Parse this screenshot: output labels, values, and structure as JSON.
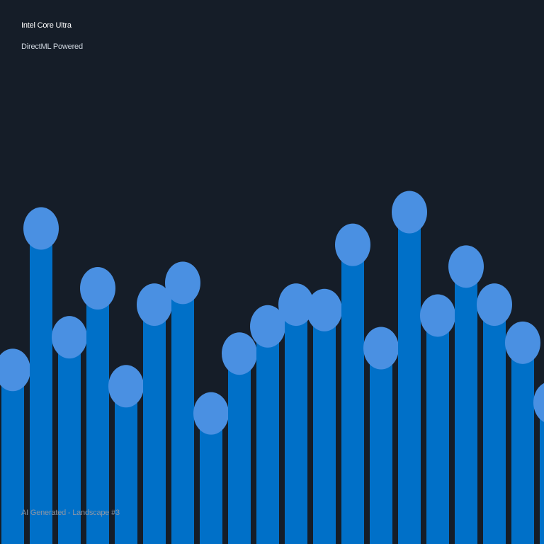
{
  "header": {
    "title": "Intel Core Ultra",
    "subtitle": "DirectML Powered"
  },
  "footer": {
    "caption": "AI Generated - Landscape #3"
  },
  "colors": {
    "background": "#151d28",
    "bar": "#0070c8",
    "cap": "#4a90e2"
  },
  "art": {
    "bar_levels": [
      0.32,
      0.58,
      0.38,
      0.47,
      0.29,
      0.44,
      0.48,
      0.24,
      0.35,
      0.4,
      0.44,
      0.43,
      0.55,
      0.36,
      0.61,
      0.42,
      0.51,
      0.44,
      0.37,
      0.26
    ]
  }
}
